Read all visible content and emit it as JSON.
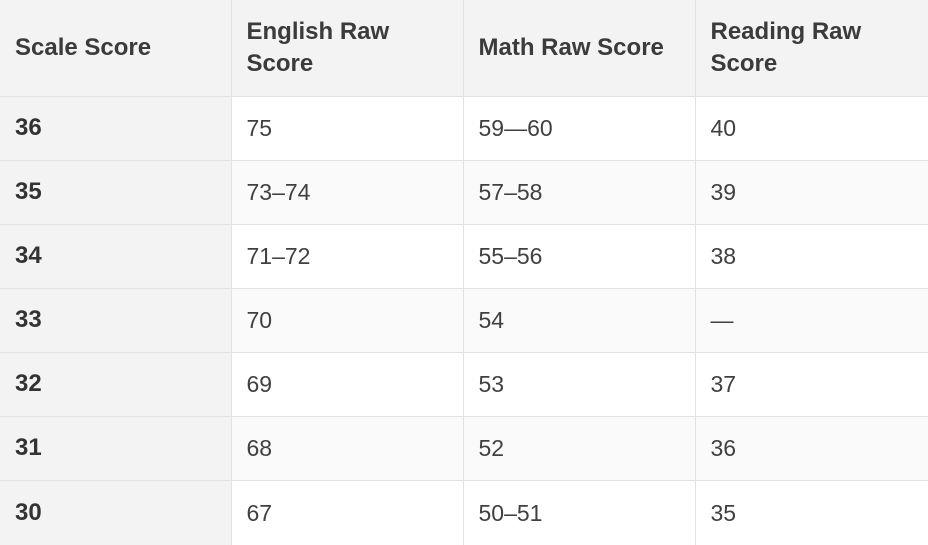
{
  "table": {
    "headers": [
      "Scale Score",
      "English Raw Score",
      "Math Raw Score",
      "Reading Raw Score"
    ],
    "rows": [
      [
        "36",
        "75",
        "59—60",
        "40"
      ],
      [
        "35",
        "73–74",
        "57–58",
        "39"
      ],
      [
        "34",
        "71–72",
        "55–56",
        "38"
      ],
      [
        "33",
        "70",
        "54",
        "—"
      ],
      [
        "32",
        "69",
        "53",
        "37"
      ],
      [
        "31",
        "68",
        "52",
        "36"
      ],
      [
        "30",
        "67",
        "50–51",
        "35"
      ]
    ]
  }
}
